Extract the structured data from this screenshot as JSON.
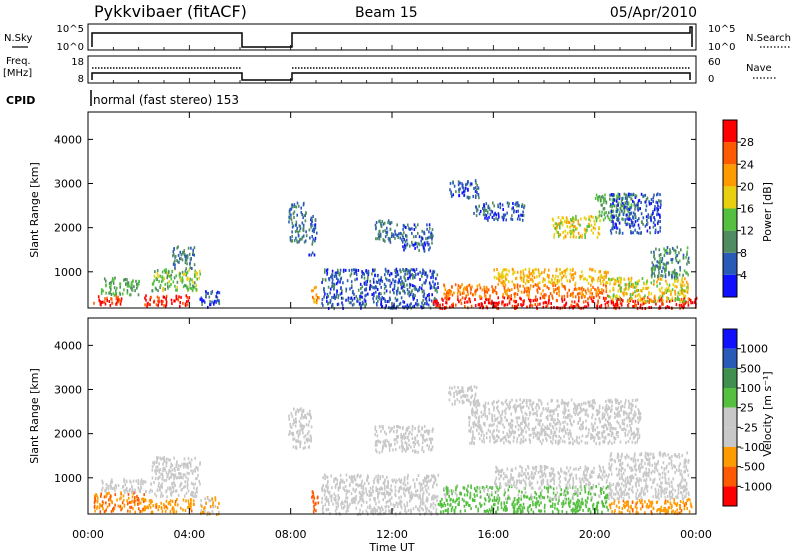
{
  "header": {
    "station": "Pykkvibaer (fitACF)",
    "beam": "Beam 15",
    "date": "05/Apr/2010"
  },
  "sky_panel": {
    "left_label": "N.Sky",
    "left_ticks": [
      "10^5",
      "10^0"
    ],
    "right_label": "N.Search",
    "right_ticks": [
      "10^5",
      "10^0"
    ]
  },
  "freq_panel": {
    "left_label": "Freq.",
    "left_unit": "[MHz]",
    "left_ticks": [
      "18",
      "8"
    ],
    "right_label": "Nave",
    "right_ticks": [
      "60",
      "0"
    ]
  },
  "cpid": {
    "label": "CPID",
    "value": "normal (fast stereo) 153"
  },
  "x_ticks": [
    "00:00",
    "04:00",
    "08:00",
    "12:00",
    "16:00",
    "20:00",
    "00:00"
  ],
  "xlabel": "Time UT",
  "colors": {
    "power": [
      "#1010ff",
      "#2a5ab8",
      "#4f8c62",
      "#55c040",
      "#e8d010",
      "#ff9a00",
      "#ff5a00",
      "#ff0000"
    ],
    "velocity": [
      "#ff0000",
      "#ff5a00",
      "#ff9a00",
      "#c8c8c8",
      "#c8c8c8",
      "#55c040",
      "#3f8f4e",
      "#2a5ab8",
      "#1010ff"
    ]
  },
  "chart_data": [
    {
      "type": "heatmap",
      "title": "",
      "xlabel": "",
      "ylabel": "Slant Range [km]",
      "x_ticks": [
        "00:00",
        "04:00",
        "08:00",
        "12:00",
        "16:00",
        "20:00",
        "00:00"
      ],
      "y_ticks": [
        1000,
        2000,
        3000,
        4000
      ],
      "ylim": [
        180,
        4620
      ],
      "xlim_hours": [
        0,
        24
      ],
      "colorbar": {
        "label": "Power [dB]",
        "ticks": [
          4,
          8,
          12,
          16,
          20,
          24,
          28
        ],
        "range": [
          0,
          32
        ]
      },
      "scatter_regions": [
        {
          "t": [
            0.2,
            1.3
          ],
          "r": [
            250,
            500
          ],
          "value": 28
        },
        {
          "t": [
            0.5,
            2.0
          ],
          "r": [
            500,
            900
          ],
          "value": 12
        },
        {
          "t": [
            2.2,
            4.0
          ],
          "r": [
            250,
            500
          ],
          "value": 30
        },
        {
          "t": [
            2.5,
            4.4
          ],
          "r": [
            600,
            1100
          ],
          "value": 14
        },
        {
          "t": [
            3.3,
            4.2
          ],
          "r": [
            1100,
            1600
          ],
          "value": 8
        },
        {
          "t": [
            4.4,
            5.2
          ],
          "r": [
            200,
            600
          ],
          "value": 6
        },
        {
          "t": [
            7.9,
            8.6
          ],
          "r": [
            1700,
            2600
          ],
          "value": 8
        },
        {
          "t": [
            8.7,
            9.0
          ],
          "r": [
            1400,
            2300
          ],
          "value": 6
        },
        {
          "t": [
            8.8,
            9.1
          ],
          "r": [
            300,
            700
          ],
          "value": 22
        },
        {
          "t": [
            9.2,
            13.8
          ],
          "r": [
            200,
            1100
          ],
          "value": 6
        },
        {
          "t": [
            11.3,
            12.3
          ],
          "r": [
            1700,
            2200
          ],
          "value": 8
        },
        {
          "t": [
            12.3,
            13.6
          ],
          "r": [
            1500,
            2100
          ],
          "value": 6
        },
        {
          "t": [
            13.6,
            24.0
          ],
          "r": [
            200,
            450
          ],
          "value": 30
        },
        {
          "t": [
            14.0,
            20.5
          ],
          "r": [
            450,
            750
          ],
          "value": 24
        },
        {
          "t": [
            16.0,
            20.5
          ],
          "r": [
            750,
            1100
          ],
          "value": 20
        },
        {
          "t": [
            20.5,
            23.7
          ],
          "r": [
            350,
            900
          ],
          "value": 18
        },
        {
          "t": [
            22.2,
            23.7
          ],
          "r": [
            900,
            1600
          ],
          "value": 10
        },
        {
          "t": [
            18.3,
            20.2
          ],
          "r": [
            1800,
            2300
          ],
          "value": 18
        },
        {
          "t": [
            20.0,
            21.6
          ],
          "r": [
            2200,
            2800
          ],
          "value": 12
        },
        {
          "t": [
            15.2,
            17.2
          ],
          "r": [
            2200,
            2600
          ],
          "value": 6
        },
        {
          "t": [
            14.2,
            15.4
          ],
          "r": [
            2700,
            3100
          ],
          "value": 6
        },
        {
          "t": [
            20.6,
            22.6
          ],
          "r": [
            1900,
            2800
          ],
          "value": 6
        }
      ]
    },
    {
      "type": "heatmap",
      "title": "",
      "xlabel": "Time UT",
      "ylabel": "Slant Range [km]",
      "x_ticks": [
        "00:00",
        "04:00",
        "08:00",
        "12:00",
        "16:00",
        "20:00",
        "00:00"
      ],
      "y_ticks": [
        1000,
        2000,
        3000,
        4000
      ],
      "ylim": [
        180,
        4620
      ],
      "xlim_hours": [
        0,
        24
      ],
      "colorbar": {
        "label": "Velocity [m s⁻¹]",
        "ticks": [
          1000,
          500,
          100,
          25,
          -25,
          -100,
          -500,
          -1000
        ],
        "range": [
          -1200,
          1200
        ]
      },
      "scatter_regions": [
        {
          "t": [
            0.2,
            2.2
          ],
          "r": [
            250,
            700
          ],
          "value": -300
        },
        {
          "t": [
            0.5,
            2.5
          ],
          "r": [
            700,
            1000
          ],
          "value": 0
        },
        {
          "t": [
            2.2,
            4.2
          ],
          "r": [
            250,
            550
          ],
          "value": -250
        },
        {
          "t": [
            2.5,
            4.4
          ],
          "r": [
            600,
            1500
          ],
          "value": 0
        },
        {
          "t": [
            4.4,
            5.2
          ],
          "r": [
            200,
            600
          ],
          "value": -80
        },
        {
          "t": [
            7.9,
            8.8
          ],
          "r": [
            1700,
            2600
          ],
          "value": 0
        },
        {
          "t": [
            8.8,
            9.1
          ],
          "r": [
            250,
            750
          ],
          "value": -600
        },
        {
          "t": [
            9.2,
            13.8
          ],
          "r": [
            200,
            1100
          ],
          "value": 0
        },
        {
          "t": [
            11.3,
            13.6
          ],
          "r": [
            1600,
            2200
          ],
          "value": 0
        },
        {
          "t": [
            13.8,
            20.5
          ],
          "r": [
            250,
            550
          ],
          "value": 150
        },
        {
          "t": [
            14.0,
            20.5
          ],
          "r": [
            550,
            850
          ],
          "value": 80
        },
        {
          "t": [
            16.0,
            20.5
          ],
          "r": [
            850,
            1300
          ],
          "value": 0
        },
        {
          "t": [
            20.5,
            23.8
          ],
          "r": [
            220,
            550
          ],
          "value": -250
        },
        {
          "t": [
            20.5,
            23.7
          ],
          "r": [
            550,
            1600
          ],
          "value": 0
        },
        {
          "t": [
            15.0,
            21.8
          ],
          "r": [
            1800,
            2800
          ],
          "value": 0
        },
        {
          "t": [
            14.2,
            15.4
          ],
          "r": [
            2700,
            3100
          ],
          "value": 0
        }
      ]
    }
  ]
}
